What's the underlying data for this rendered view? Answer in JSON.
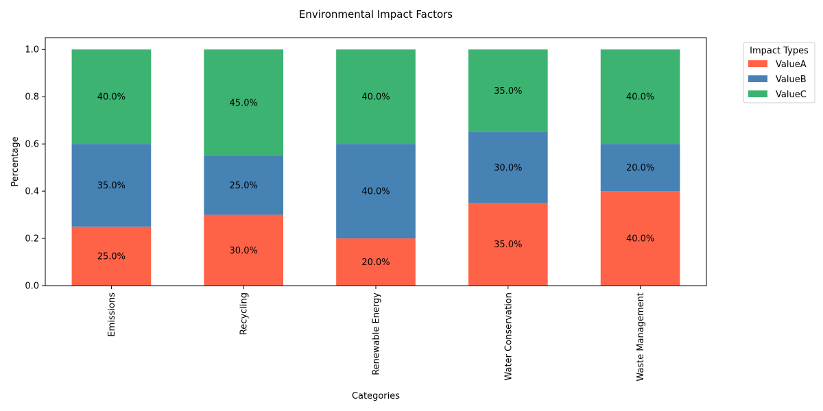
{
  "chart_data": {
    "type": "bar",
    "stacked": true,
    "title": "Environmental Impact Factors",
    "xlabel": "Categories",
    "ylabel": "Percentage",
    "ylim": [
      0,
      1.05
    ],
    "yticks": [
      "0.0",
      "0.2",
      "0.4",
      "0.6",
      "0.8",
      "1.0"
    ],
    "categories": [
      "Emissions",
      "Recycling",
      "Renewable Energy",
      "Water Conservation",
      "Waste Management"
    ],
    "series": [
      {
        "name": "ValueA",
        "color": "#ff6347",
        "values": [
          0.25,
          0.3,
          0.2,
          0.35,
          0.4
        ],
        "labels": [
          "25.0%",
          "30.0%",
          "20.0%",
          "35.0%",
          "40.0%"
        ]
      },
      {
        "name": "ValueB",
        "color": "#4682b4",
        "values": [
          0.35,
          0.25,
          0.4,
          0.3,
          0.2
        ],
        "labels": [
          "35.0%",
          "25.0%",
          "40.0%",
          "30.0%",
          "20.0%"
        ]
      },
      {
        "name": "ValueC",
        "color": "#3cb371",
        "values": [
          0.4,
          0.45,
          0.4,
          0.35,
          0.4
        ],
        "labels": [
          "40.0%",
          "45.0%",
          "40.0%",
          "35.0%",
          "40.0%"
        ]
      }
    ],
    "legend": {
      "title": "Impact Types",
      "placement": "outside-top-right"
    },
    "grid": false
  }
}
